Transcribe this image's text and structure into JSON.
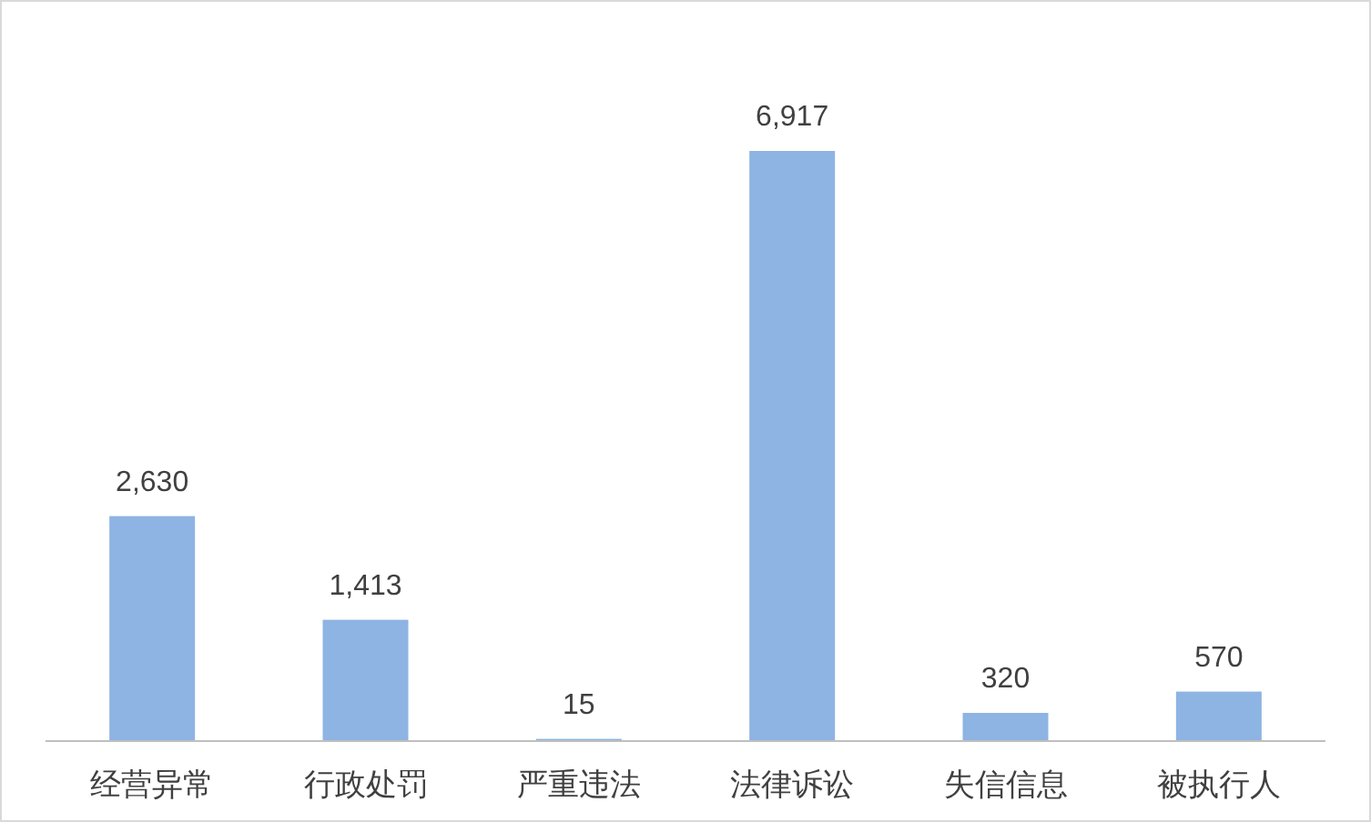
{
  "chart_data": {
    "type": "bar",
    "categories": [
      "经营异常",
      "行政处罚",
      "严重违法",
      "法律诉讼",
      "失信信息",
      "被执行人"
    ],
    "values": [
      2630,
      1413,
      15,
      6917,
      320,
      570
    ],
    "value_labels": [
      "2,630",
      "1,413",
      "15",
      "6,917",
      "320",
      "570"
    ],
    "color": "#8db4e2"
  }
}
